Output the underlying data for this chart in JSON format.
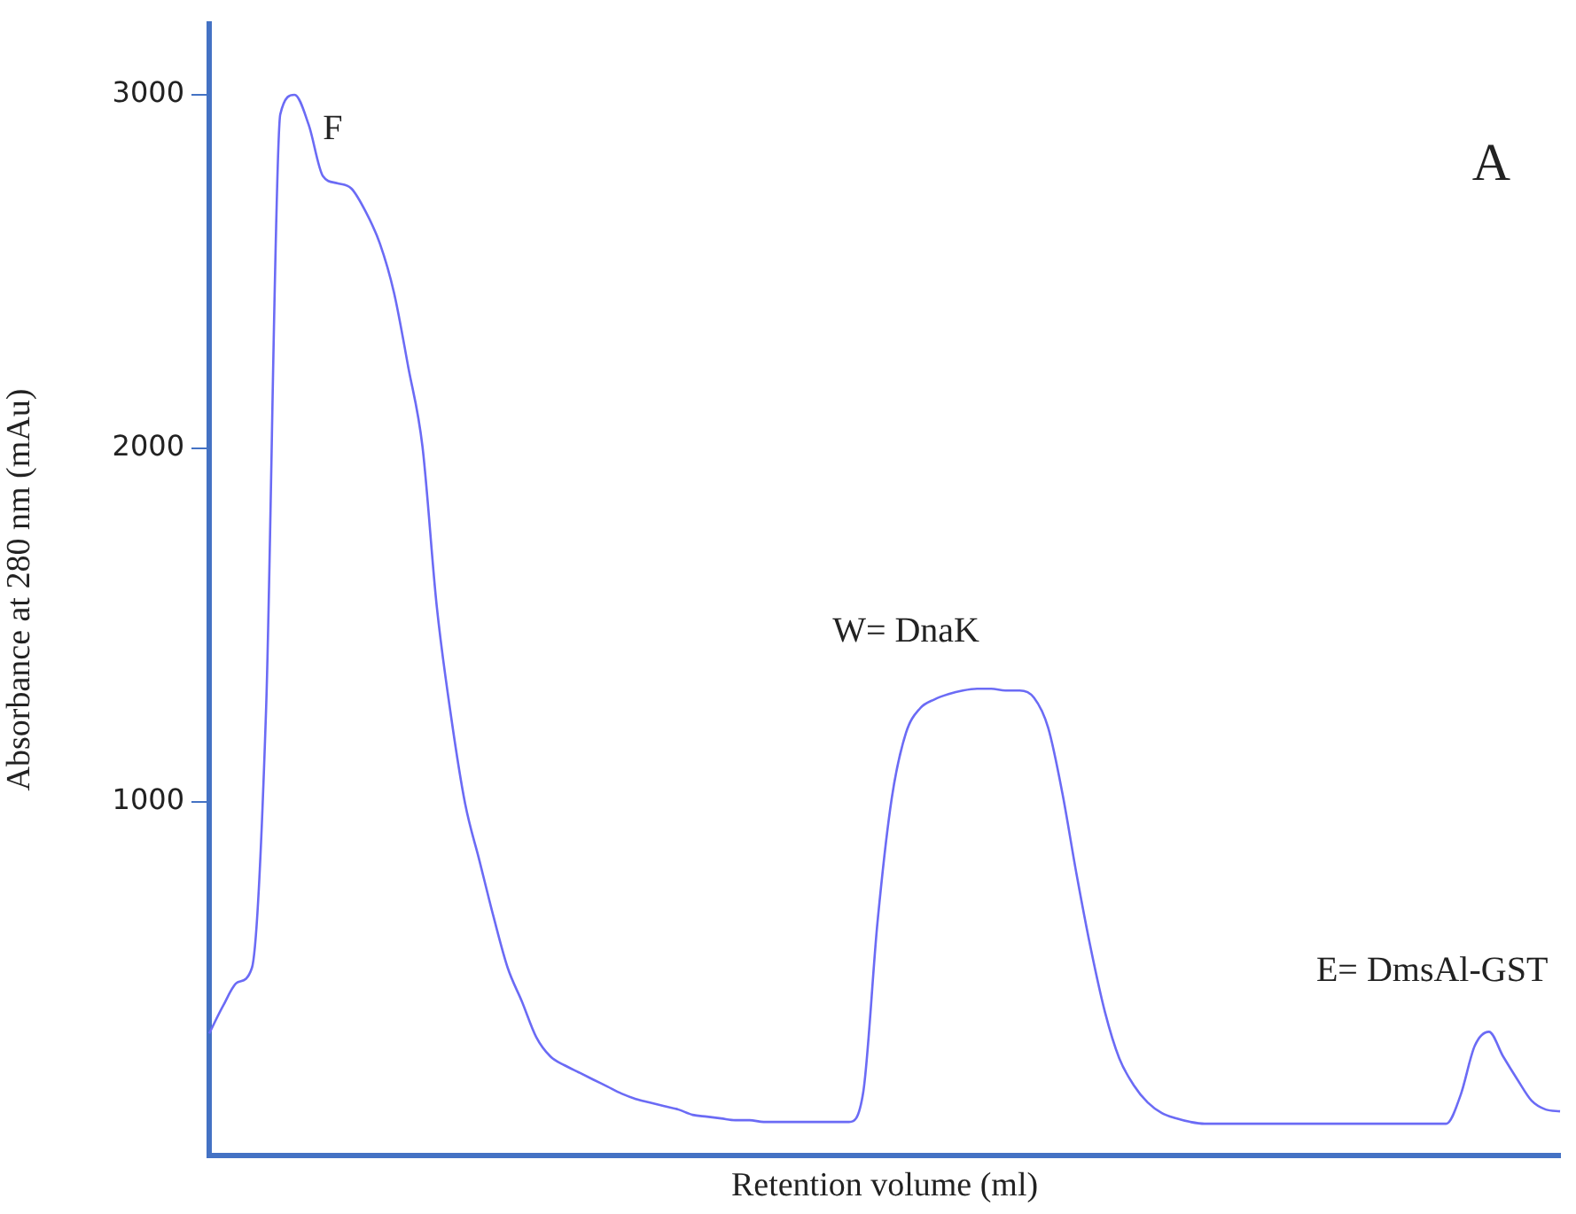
{
  "chart_data": {
    "type": "line",
    "xlabel": "Retention volume (ml)",
    "ylabel": "Absorbance at 280 nm (mAu)",
    "annotations": [
      "F",
      "W= DnaK",
      "E= DmsAl-GST",
      "A"
    ],
    "categories": [
      null,
      null,
      null,
      null,
      null,
      null,
      null,
      null,
      null,
      null,
      null,
      null,
      null,
      null,
      null,
      null,
      null,
      null,
      null,
      null,
      null,
      null,
      null,
      null,
      null,
      null,
      null,
      null,
      null,
      null,
      null,
      null,
      null,
      null,
      null,
      null,
      null,
      null,
      null,
      null,
      null,
      null,
      null,
      null,
      null,
      null,
      null,
      null,
      null,
      null,
      null,
      null,
      null,
      null,
      null,
      null,
      null,
      null,
      null,
      null,
      null,
      null,
      null,
      null,
      null,
      null,
      null,
      null,
      null,
      null,
      null,
      null,
      null,
      null,
      null,
      null,
      null,
      null,
      null,
      null,
      null,
      null,
      null,
      null,
      null,
      null,
      null,
      null,
      null,
      null,
      null,
      null,
      null,
      null,
      null,
      null
    ],
    "series": [
      {
        "color": "#6b6bf5",
        "values": [
          345,
          425,
          490,
          530,
          1260,
          2945,
          3000,
          2915,
          2770,
          2750,
          2735,
          2670,
          2580,
          2440,
          2230,
          2005,
          1555,
          1245,
          995,
          835,
          675,
          530,
          435,
          335,
          280,
          255,
          235,
          215,
          195,
          175,
          160,
          150,
          140,
          130,
          115,
          110,
          105,
          100,
          100,
          95,
          95,
          95,
          95,
          95,
          95,
          95,
          180,
          660,
          1010,
          1195,
          1265,
          1290,
          1305,
          1315,
          1320,
          1320,
          1315,
          1315,
          1295,
          1210,
          1025,
          795,
          585,
          405,
          275,
          200,
          150,
          120,
          105,
          95,
          90,
          90,
          90,
          90,
          90,
          90,
          90,
          90,
          90,
          90,
          90,
          90,
          90,
          90,
          90,
          90,
          90,
          90,
          170,
          310,
          350,
          280,
          215,
          155,
          130,
          125
        ]
      }
    ],
    "ylim": [
      0,
      3200
    ],
    "yticks": [
      1000,
      2000,
      3000
    ],
    "grid": false,
    "legend": false,
    "marker": "none",
    "line_style": "solid"
  }
}
